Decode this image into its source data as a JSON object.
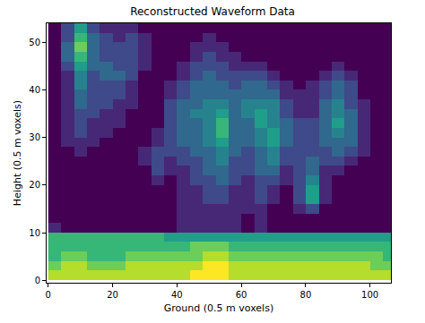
{
  "chart_data": {
    "type": "heatmap",
    "title": "Reconstructed Waveform Data",
    "x_label": "Ground (0.5 m voxels)",
    "y_label": "Height (0.5 m voxels)",
    "color": "Viridis",
    "grid": false,
    "xlim": [
      -0.5,
      106.5
    ],
    "ylim": [
      -0.5,
      54
    ],
    "xticks": [
      0,
      20,
      40,
      60,
      80,
      100
    ],
    "yticks": [
      0,
      10,
      20,
      30,
      40,
      50
    ],
    "zlim": [
      0,
      9
    ],
    "x": [
      2,
      6,
      10,
      14,
      18,
      22,
      26,
      30,
      34,
      38,
      42,
      46,
      50,
      54,
      58,
      62,
      66,
      70,
      74,
      78,
      82,
      86,
      90,
      94,
      98,
      102,
      106
    ],
    "y": [
      1,
      3,
      5,
      7,
      9,
      11,
      13,
      15,
      17,
      19,
      21,
      23,
      25,
      27,
      29,
      31,
      33,
      35,
      37,
      39,
      41,
      43,
      45,
      47,
      49,
      51,
      53
    ],
    "z": [
      [
        8,
        8,
        8,
        8,
        8,
        8,
        8,
        8,
        8,
        8,
        8,
        9,
        9,
        9,
        8,
        8,
        8,
        8,
        8,
        8,
        8,
        8,
        8,
        8,
        8,
        8,
        8
      ],
      [
        7,
        8,
        8,
        7,
        7,
        7,
        8,
        8,
        8,
        8,
        8,
        8,
        9,
        9,
        8,
        8,
        8,
        8,
        8,
        8,
        8,
        8,
        8,
        8,
        8,
        7,
        7
      ],
      [
        6,
        7,
        7,
        6,
        6,
        6,
        7,
        7,
        7,
        7,
        7,
        7,
        8,
        8,
        7,
        7,
        7,
        7,
        7,
        7,
        7,
        7,
        7,
        7,
        7,
        7,
        6
      ],
      [
        6,
        6,
        6,
        6,
        6,
        6,
        6,
        6,
        6,
        6,
        6,
        7,
        7,
        7,
        6,
        6,
        6,
        6,
        6,
        6,
        6,
        6,
        6,
        6,
        6,
        6,
        6
      ],
      [
        6,
        6,
        6,
        6,
        6,
        6,
        6,
        6,
        6,
        5,
        5,
        5,
        5,
        5,
        5,
        5,
        5,
        5,
        5,
        5,
        5,
        5,
        5,
        5,
        5,
        5,
        5
      ],
      [
        1,
        0,
        0,
        0,
        0,
        0,
        0,
        0,
        0,
        0,
        1,
        1,
        1,
        1,
        1,
        0,
        1,
        0,
        0,
        0,
        0,
        0,
        0,
        0,
        0,
        0,
        0
      ],
      [
        0,
        0,
        0,
        0,
        0,
        0,
        0,
        0,
        0,
        0,
        1,
        1,
        1,
        1,
        1,
        0,
        1,
        0,
        0,
        0,
        0,
        0,
        0,
        0,
        0,
        0,
        0
      ],
      [
        0,
        0,
        0,
        0,
        0,
        0,
        0,
        0,
        0,
        0,
        1,
        1,
        1,
        1,
        1,
        1,
        1,
        0,
        0,
        1,
        2,
        0,
        0,
        0,
        0,
        0,
        0
      ],
      [
        0,
        0,
        0,
        0,
        0,
        0,
        0,
        0,
        0,
        0,
        1,
        1,
        2,
        2,
        1,
        1,
        2,
        1,
        0,
        2,
        5,
        1,
        0,
        0,
        0,
        0,
        0
      ],
      [
        0,
        0,
        0,
        0,
        0,
        0,
        0,
        0,
        0,
        0,
        1,
        1,
        2,
        2,
        1,
        1,
        2,
        1,
        0,
        2,
        5,
        1,
        0,
        0,
        0,
        0,
        0
      ],
      [
        0,
        0,
        0,
        0,
        0,
        0,
        0,
        0,
        1,
        0,
        1,
        2,
        2,
        3,
        2,
        1,
        2,
        2,
        1,
        2,
        4,
        1,
        0,
        0,
        0,
        0,
        0
      ],
      [
        0,
        0,
        0,
        0,
        0,
        0,
        0,
        0,
        2,
        1,
        1,
        2,
        3,
        3,
        2,
        2,
        3,
        3,
        1,
        2,
        3,
        1,
        1,
        0,
        0,
        0,
        0
      ],
      [
        0,
        0,
        0,
        0,
        0,
        0,
        0,
        1,
        2,
        1,
        2,
        2,
        3,
        4,
        2,
        2,
        3,
        4,
        2,
        2,
        3,
        2,
        2,
        1,
        0,
        0,
        0
      ],
      [
        0,
        0,
        1,
        0,
        0,
        0,
        0,
        1,
        2,
        2,
        2,
        3,
        3,
        4,
        3,
        2,
        3,
        4,
        2,
        2,
        2,
        2,
        3,
        2,
        1,
        0,
        0
      ],
      [
        0,
        1,
        1,
        1,
        0,
        0,
        0,
        0,
        1,
        2,
        3,
        3,
        4,
        5,
        3,
        3,
        4,
        5,
        3,
        2,
        2,
        3,
        3,
        3,
        1,
        0,
        0
      ],
      [
        0,
        1,
        2,
        1,
        1,
        0,
        0,
        0,
        1,
        2,
        3,
        3,
        4,
        6,
        3,
        3,
        4,
        5,
        3,
        2,
        2,
        3,
        4,
        3,
        1,
        0,
        0
      ],
      [
        0,
        1,
        2,
        1,
        1,
        1,
        0,
        0,
        0,
        2,
        3,
        3,
        4,
        6,
        3,
        3,
        5,
        4,
        3,
        2,
        2,
        3,
        5,
        3,
        1,
        0,
        0
      ],
      [
        0,
        1,
        2,
        2,
        1,
        1,
        0,
        0,
        0,
        2,
        3,
        4,
        4,
        5,
        3,
        4,
        5,
        4,
        2,
        1,
        1,
        3,
        4,
        3,
        1,
        0,
        0
      ],
      [
        0,
        1,
        3,
        2,
        2,
        1,
        1,
        0,
        0,
        2,
        3,
        3,
        4,
        4,
        3,
        4,
        4,
        4,
        2,
        1,
        1,
        3,
        4,
        2,
        1,
        0,
        0
      ],
      [
        0,
        1,
        3,
        2,
        2,
        2,
        1,
        0,
        0,
        1,
        2,
        3,
        3,
        3,
        3,
        3,
        3,
        3,
        1,
        1,
        1,
        2,
        3,
        2,
        0,
        0,
        0
      ],
      [
        0,
        1,
        4,
        2,
        2,
        2,
        1,
        0,
        0,
        1,
        2,
        3,
        3,
        3,
        2,
        3,
        3,
        2,
        1,
        0,
        1,
        2,
        3,
        2,
        0,
        0,
        0
      ],
      [
        0,
        1,
        4,
        2,
        3,
        3,
        2,
        0,
        0,
        0,
        1,
        2,
        3,
        2,
        2,
        2,
        2,
        1,
        0,
        0,
        0,
        1,
        2,
        1,
        0,
        0,
        0
      ],
      [
        0,
        2,
        5,
        3,
        3,
        2,
        2,
        1,
        0,
        0,
        1,
        2,
        2,
        2,
        1,
        1,
        1,
        0,
        0,
        0,
        0,
        0,
        1,
        0,
        0,
        0,
        0
      ],
      [
        0,
        3,
        6,
        3,
        2,
        2,
        2,
        1,
        0,
        0,
        0,
        1,
        2,
        1,
        1,
        0,
        0,
        0,
        0,
        0,
        0,
        0,
        0,
        0,
        0,
        0,
        0
      ],
      [
        0,
        3,
        7,
        3,
        2,
        2,
        2,
        1,
        0,
        0,
        0,
        1,
        1,
        1,
        0,
        0,
        0,
        0,
        0,
        0,
        0,
        0,
        0,
        0,
        0,
        0,
        0
      ],
      [
        0,
        2,
        6,
        3,
        2,
        1,
        2,
        1,
        0,
        0,
        0,
        0,
        1,
        0,
        0,
        0,
        0,
        0,
        0,
        0,
        0,
        0,
        0,
        0,
        0,
        0,
        0
      ],
      [
        0,
        2,
        5,
        2,
        1,
        1,
        1,
        0,
        0,
        0,
        0,
        0,
        0,
        0,
        0,
        0,
        0,
        0,
        0,
        0,
        0,
        0,
        0,
        0,
        0,
        0,
        0
      ]
    ]
  }
}
